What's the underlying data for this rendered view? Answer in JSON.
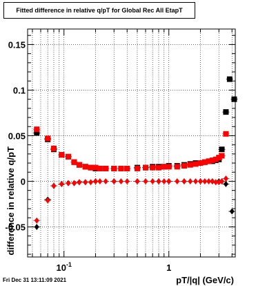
{
  "title": "Fitted difference in relative q/pT for Global Rec All EtapT",
  "footer": "Fri Dec 31 13:11:09 2021",
  "chart_data": {
    "type": "scatter",
    "xlabel": "pT/|q| (GeV/c)",
    "ylabel": "difference in relative q/pT",
    "xscale": "log",
    "xlim": [
      0.045,
      4.3
    ],
    "ylim": [
      -0.083,
      0.167
    ],
    "grid": true,
    "x_ticks": [
      {
        "value": 0.1,
        "label": "10",
        "exponent": "-1"
      },
      {
        "value": 1,
        "label": "1",
        "exponent": ""
      }
    ],
    "y_ticks": [
      {
        "value": 0.15,
        "label": "0.15"
      },
      {
        "value": 0.1,
        "label": "0.1"
      },
      {
        "value": 0.05,
        "label": "0.05"
      },
      {
        "value": 0,
        "label": "0"
      },
      {
        "value": -0.05,
        "label": "-0.05"
      }
    ],
    "series": [
      {
        "marker": "square",
        "color": "#000000",
        "x": [
          0.055,
          0.07,
          0.08,
          0.095,
          0.11,
          0.125,
          0.14,
          0.16,
          0.18,
          0.2,
          0.22,
          0.25,
          0.3,
          0.35,
          0.4,
          0.5,
          0.6,
          0.7,
          0.8,
          0.9,
          1.0,
          1.2,
          1.4,
          1.6,
          1.8,
          2.0,
          2.2,
          2.4,
          2.6,
          2.8,
          3.0,
          3.2,
          3.5,
          3.8,
          4.2
        ],
        "y": [
          0.053,
          0.046,
          0.035,
          0.029,
          0.027,
          0.021,
          0.018,
          0.016,
          0.015,
          0.014,
          0.014,
          0.014,
          0.014,
          0.014,
          0.014,
          0.015,
          0.015,
          0.016,
          0.016,
          0.016,
          0.017,
          0.017,
          0.018,
          0.019,
          0.02,
          0.02,
          0.021,
          0.022,
          0.022,
          0.023,
          0.024,
          0.035,
          0.076,
          0.112,
          0.09
        ]
      },
      {
        "marker": "diamond",
        "color": "#000000",
        "x": [
          0.055,
          0.07,
          0.08,
          0.095,
          0.11,
          0.125,
          0.14,
          0.16,
          0.2,
          0.3,
          0.5,
          0.8,
          1.0,
          1.4,
          2.0,
          2.6,
          3.0,
          3.2,
          3.5,
          4.0
        ],
        "y": [
          -0.05,
          -0.02,
          -0.005,
          -0.003,
          -0.002,
          -0.002,
          -0.001,
          -0.001,
          0.0,
          0.0,
          0.0,
          0.0,
          0.0,
          0.0,
          0.0,
          0.0,
          0.0,
          0.0,
          -0.003,
          -0.033
        ]
      },
      {
        "marker": "square",
        "color": "#ff0000",
        "x": [
          0.055,
          0.07,
          0.08,
          0.095,
          0.11,
          0.125,
          0.14,
          0.16,
          0.18,
          0.2,
          0.22,
          0.25,
          0.3,
          0.35,
          0.4,
          0.5,
          0.6,
          0.7,
          0.8,
          0.9,
          1.0,
          1.2,
          1.4,
          1.6,
          1.8,
          2.0,
          2.2,
          2.4,
          2.6,
          2.8,
          3.0,
          3.2,
          3.5
        ],
        "y": [
          0.057,
          0.047,
          0.036,
          0.029,
          0.027,
          0.021,
          0.018,
          0.016,
          0.015,
          0.015,
          0.014,
          0.014,
          0.014,
          0.014,
          0.014,
          0.014,
          0.015,
          0.015,
          0.015,
          0.016,
          0.016,
          0.016,
          0.017,
          0.018,
          0.019,
          0.02,
          0.021,
          0.022,
          0.023,
          0.024,
          0.026,
          0.028,
          0.052
        ]
      },
      {
        "marker": "diamond",
        "color": "#ff0000",
        "x": [
          0.055,
          0.07,
          0.08,
          0.095,
          0.11,
          0.125,
          0.14,
          0.16,
          0.18,
          0.2,
          0.22,
          0.25,
          0.3,
          0.35,
          0.4,
          0.5,
          0.6,
          0.7,
          0.8,
          0.9,
          1.0,
          1.2,
          1.4,
          1.6,
          1.8,
          2.0,
          2.2,
          2.4,
          2.6,
          2.8,
          3.0,
          3.2,
          3.5
        ],
        "y": [
          -0.043,
          -0.021,
          -0.005,
          -0.003,
          -0.002,
          -0.002,
          -0.001,
          -0.001,
          -0.001,
          0.0,
          0.0,
          0.0,
          0.0,
          0.0,
          0.0,
          0.0,
          0.0,
          0.0,
          0.0,
          0.0,
          0.0,
          0.0,
          0.0,
          0.0,
          0.0,
          0.0,
          0.0,
          0.0,
          0.0,
          -0.001,
          -0.001,
          0.0,
          0.003
        ]
      }
    ]
  }
}
